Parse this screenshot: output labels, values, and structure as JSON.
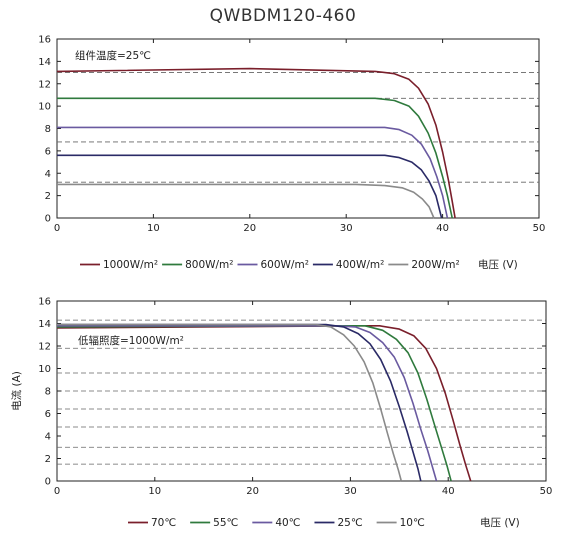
{
  "title": "QWBDM120-460",
  "chart_data": [
    {
      "type": "line",
      "annotation": "组件温度=25℃",
      "xlabel": "电压 (V)",
      "ylabel": "",
      "xlim": [
        0,
        50
      ],
      "ylim": [
        0,
        16
      ],
      "xticks": [
        0,
        10,
        20,
        30,
        40,
        50
      ],
      "yticks": [
        0,
        2,
        4,
        6,
        8,
        10,
        12,
        14,
        16
      ],
      "dashed_gridlines_y": [
        13,
        10.7,
        6.8,
        3.2
      ],
      "series": [
        {
          "name": "1000W/m²",
          "color": "#7a1f2b",
          "x": [
            0,
            20,
            33,
            35,
            36.5,
            37.5,
            38.5,
            39.3,
            40,
            40.6,
            41,
            41.3
          ],
          "y": [
            13.1,
            13.35,
            13.1,
            12.9,
            12.4,
            11.6,
            10.2,
            8.3,
            5.9,
            3.4,
            1.5,
            0
          ]
        },
        {
          "name": "800W/m²",
          "color": "#2f7a3d",
          "x": [
            0,
            33,
            35,
            36.5,
            37.5,
            38.5,
            39.3,
            40,
            40.5,
            41
          ],
          "y": [
            10.7,
            10.7,
            10.5,
            10,
            9.1,
            7.6,
            5.8,
            3.7,
            2,
            0
          ]
        },
        {
          "name": "600W/m²",
          "color": "#6a5aa0",
          "x": [
            0,
            34,
            35.5,
            36.8,
            37.8,
            38.7,
            39.4,
            40,
            40.5
          ],
          "y": [
            8.1,
            8.1,
            7.9,
            7.4,
            6.6,
            5.3,
            3.7,
            2,
            0
          ]
        },
        {
          "name": "400W/m²",
          "color": "#2a2a66",
          "x": [
            0,
            34,
            35.5,
            36.8,
            37.8,
            38.6,
            39.3,
            39.9
          ],
          "y": [
            5.6,
            5.6,
            5.4,
            5,
            4.3,
            3.3,
            2,
            0
          ]
        },
        {
          "name": "200W/m²",
          "color": "#8a8a8a",
          "x": [
            0,
            31,
            34,
            35.8,
            37,
            37.9,
            38.6,
            39.1
          ],
          "y": [
            3.0,
            3.0,
            2.9,
            2.7,
            2.3,
            1.7,
            1.0,
            0
          ]
        }
      ]
    },
    {
      "type": "line",
      "annotation": "低辐照度=1000W/m²",
      "xlabel": "电压 (V)",
      "ylabel": "电流 (A)",
      "xlim": [
        0,
        50
      ],
      "ylim": [
        0,
        16
      ],
      "xticks": [
        0,
        10,
        20,
        30,
        40,
        50
      ],
      "yticks": [
        0,
        2,
        4,
        6,
        8,
        10,
        12,
        14,
        16
      ],
      "dashed_gridlines_y": [
        14.3,
        11.8,
        9.6,
        8.0,
        6.4,
        4.8,
        3.0,
        1.5
      ],
      "series": [
        {
          "name": "70℃",
          "color": "#7a1f2b",
          "x": [
            0,
            30,
            33,
            35,
            36.5,
            37.7,
            38.8,
            39.7,
            40.5,
            41.2,
            41.8,
            42.3
          ],
          "y": [
            13.6,
            13.8,
            13.8,
            13.5,
            12.9,
            11.8,
            10,
            7.8,
            5.4,
            3.2,
            1.4,
            0
          ]
        },
        {
          "name": "55℃",
          "color": "#2f7a3d",
          "x": [
            0,
            29,
            31.5,
            33.3,
            34.7,
            35.9,
            36.9,
            37.8,
            38.6,
            39.3,
            39.9,
            40.3
          ],
          "y": [
            13.7,
            13.8,
            13.8,
            13.4,
            12.6,
            11.4,
            9.6,
            7.3,
            5,
            3,
            1.3,
            0
          ]
        },
        {
          "name": "40℃",
          "color": "#6a5aa0",
          "x": [
            0,
            28.5,
            30.5,
            32,
            33.3,
            34.5,
            35.5,
            36.4,
            37.2,
            37.9,
            38.4,
            38.8
          ],
          "y": [
            13.8,
            13.8,
            13.7,
            13.2,
            12.3,
            11,
            9.2,
            6.9,
            4.6,
            2.7,
            1.2,
            0
          ]
        },
        {
          "name": "25℃",
          "color": "#2a2a66",
          "x": [
            0,
            27.5,
            29.3,
            30.8,
            32,
            33.1,
            34.1,
            35,
            35.8,
            36.4,
            36.9,
            37.2
          ],
          "y": [
            13.9,
            13.9,
            13.7,
            13.1,
            12.2,
            10.8,
            8.9,
            6.6,
            4.4,
            2.6,
            1.1,
            0
          ]
        },
        {
          "name": "10℃",
          "color": "#8a8a8a",
          "x": [
            0,
            26.5,
            28,
            29.3,
            30.4,
            31.4,
            32.3,
            33.1,
            33.8,
            34.4,
            34.9,
            35.2
          ],
          "y": [
            13.9,
            13.9,
            13.7,
            13.0,
            12.0,
            10.6,
            8.7,
            6.4,
            4.2,
            2.4,
            1.0,
            0
          ]
        }
      ]
    }
  ]
}
